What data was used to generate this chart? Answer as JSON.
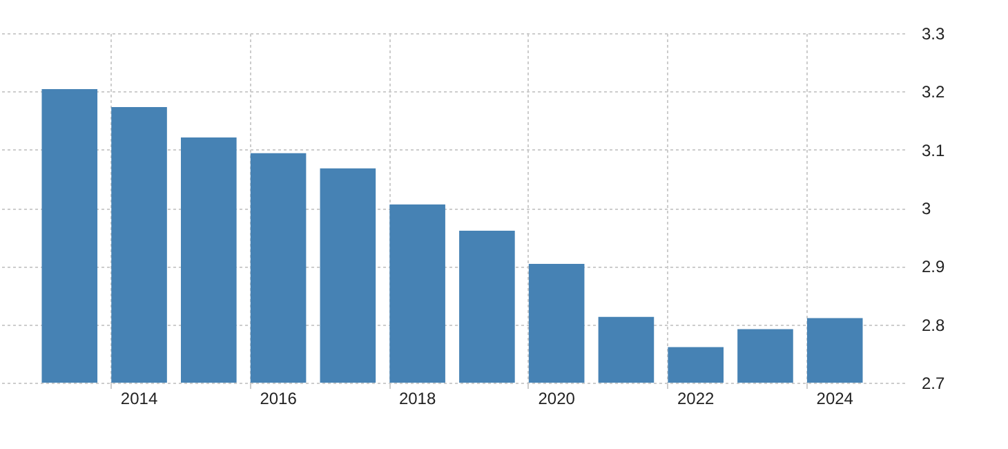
{
  "chart_data": {
    "type": "bar",
    "categories": [
      null,
      "2014",
      null,
      "2016",
      null,
      "2018",
      null,
      "2020",
      null,
      "2022",
      null,
      "2024"
    ],
    "values": [
      3.204,
      3.173,
      3.121,
      3.094,
      3.068,
      3.006,
      2.961,
      2.904,
      2.813,
      2.761,
      2.792,
      2.811
    ],
    "color": "#4682b4",
    "ylim": [
      2.7,
      3.3
    ],
    "yticks": [
      2.7,
      2.8,
      2.9,
      3,
      3.1,
      3.2,
      3.3
    ],
    "grid": true
  }
}
